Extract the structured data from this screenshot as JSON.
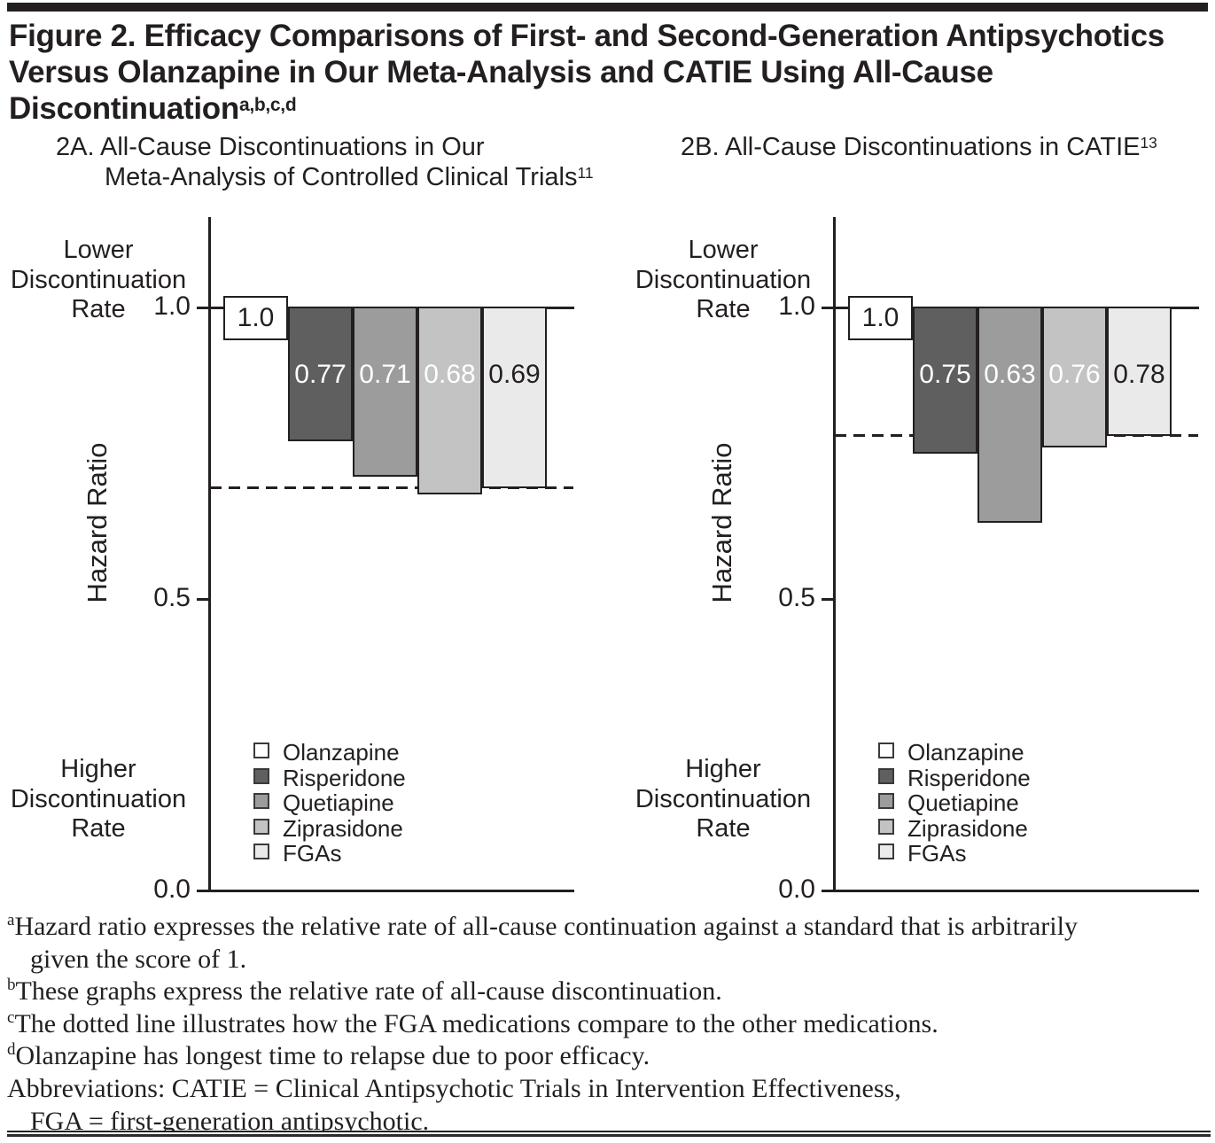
{
  "figure": {
    "title_lines": [
      "Figure 2. Efficacy Comparisons of First- and Second-Generation Antipsychotics",
      "Versus Olanzapine in Our Meta-Analysis and CATIE Using All-Cause"
    ],
    "title_last_line": {
      "text": "Discontinuation",
      "superscript": "a,b,c,d"
    }
  },
  "chart_data": [
    {
      "type": "bar",
      "panel": "2A",
      "title_lines": [
        {
          "text": "2A. All-Cause Discontinuations in Our",
          "sup": "",
          "indent": 0
        },
        {
          "text": "Meta-Analysis of Controlled Clinical Trials",
          "sup": "11",
          "indent": 55
        }
      ],
      "ylabel": "Hazard Ratio",
      "upper_axis_label": [
        "Lower",
        "Discontinuation",
        "Rate"
      ],
      "lower_axis_label": [
        "Higher",
        "Discontinuation",
        "Rate"
      ],
      "yticks": [
        {
          "label": "1.0",
          "value": 1.0
        },
        {
          "label": "0.5",
          "value": 0.5
        },
        {
          "label": "0.0",
          "value": 0.0
        }
      ],
      "ylim": [
        0,
        1.15
      ],
      "grid": false,
      "legend_position": "inside-lower-left",
      "reference_value": 1.0,
      "dashed_line_value": 0.69,
      "categories": [
        "Olanzapine",
        "Risperidone",
        "Quetiapine",
        "Ziprasidone",
        "FGAs"
      ],
      "values": [
        1.0,
        0.77,
        0.71,
        0.68,
        0.69
      ],
      "series": [
        {
          "name": "Olanzapine",
          "value": 1.0,
          "label": "1.0",
          "color": "#ffffff",
          "label_color": "#231f20",
          "reference": true
        },
        {
          "name": "Risperidone",
          "value": 0.77,
          "label": "0.77",
          "color": "#5f5f5f",
          "label_color": "#ffffff",
          "reference": false
        },
        {
          "name": "Quetiapine",
          "value": 0.71,
          "label": "0.71",
          "color": "#9c9c9c",
          "label_color": "#ffffff",
          "reference": false
        },
        {
          "name": "Ziprasidone",
          "value": 0.68,
          "label": "0.68",
          "color": "#c3c3c3",
          "label_color": "#ffffff",
          "reference": false
        },
        {
          "name": "FGAs",
          "value": 0.69,
          "label": "0.69",
          "color": "#eaeaea",
          "label_color": "#231f20",
          "reference": false
        }
      ]
    },
    {
      "type": "bar",
      "panel": "2B",
      "title_lines": [
        {
          "text": "2B. All-Cause Discontinuations in CATIE",
          "sup": "13",
          "indent": 0
        }
      ],
      "ylabel": "Hazard Ratio",
      "upper_axis_label": [
        "Lower",
        "Discontinuation",
        "Rate"
      ],
      "lower_axis_label": [
        "Higher",
        "Discontinuation",
        "Rate"
      ],
      "yticks": [
        {
          "label": "1.0",
          "value": 1.0
        },
        {
          "label": "0.5",
          "value": 0.5
        },
        {
          "label": "0.0",
          "value": 0.0
        }
      ],
      "ylim": [
        0,
        1.15
      ],
      "grid": false,
      "legend_position": "inside-lower-left",
      "reference_value": 1.0,
      "dashed_line_value": 0.78,
      "categories": [
        "Olanzapine",
        "Risperidone",
        "Quetiapine",
        "Ziprasidone",
        "FGAs"
      ],
      "values": [
        1.0,
        0.75,
        0.63,
        0.76,
        0.78
      ],
      "series": [
        {
          "name": "Olanzapine",
          "value": 1.0,
          "label": "1.0",
          "color": "#ffffff",
          "label_color": "#231f20",
          "reference": true
        },
        {
          "name": "Risperidone",
          "value": 0.75,
          "label": "0.75",
          "color": "#5f5f5f",
          "label_color": "#ffffff",
          "reference": false
        },
        {
          "name": "Quetiapine",
          "value": 0.63,
          "label": "0.63",
          "color": "#9c9c9c",
          "label_color": "#ffffff",
          "reference": false
        },
        {
          "name": "Ziprasidone",
          "value": 0.76,
          "label": "0.76",
          "color": "#c3c3c3",
          "label_color": "#ffffff",
          "reference": false
        },
        {
          "name": "FGAs",
          "value": 0.78,
          "label": "0.78",
          "color": "#eaeaea",
          "label_color": "#231f20",
          "reference": false
        }
      ]
    }
  ],
  "footnotes": [
    {
      "sup": "a",
      "text": "Hazard ratio expresses the relative rate of all-cause continuation against a standard that is arbitrarily",
      "indent": 0
    },
    {
      "sup": "",
      "text": "given the score of 1.",
      "indent": 26
    },
    {
      "sup": "b",
      "text": "These graphs express the relative rate of all-cause discontinuation.",
      "indent": 0
    },
    {
      "sup": "c",
      "text": "The dotted line illustrates how the FGA medications compare to the other medications.",
      "indent": 0
    },
    {
      "sup": "d",
      "text": "Olanzapine has longest time to relapse due to poor efficacy.",
      "indent": 0
    },
    {
      "sup": "",
      "text": "Abbreviations: CATIE = Clinical Antipsychotic Trials in Intervention Effectiveness,",
      "indent": 0
    },
    {
      "sup": "",
      "text": "FGA = first-generation antipsychotic.",
      "indent": 26
    }
  ],
  "colors": {
    "text": "#231f20",
    "olanzapine": "#ffffff",
    "risperidone": "#5f5f5f",
    "quetiapine": "#9c9c9c",
    "ziprasidone": "#c3c3c3",
    "fgas": "#eaeaea"
  }
}
